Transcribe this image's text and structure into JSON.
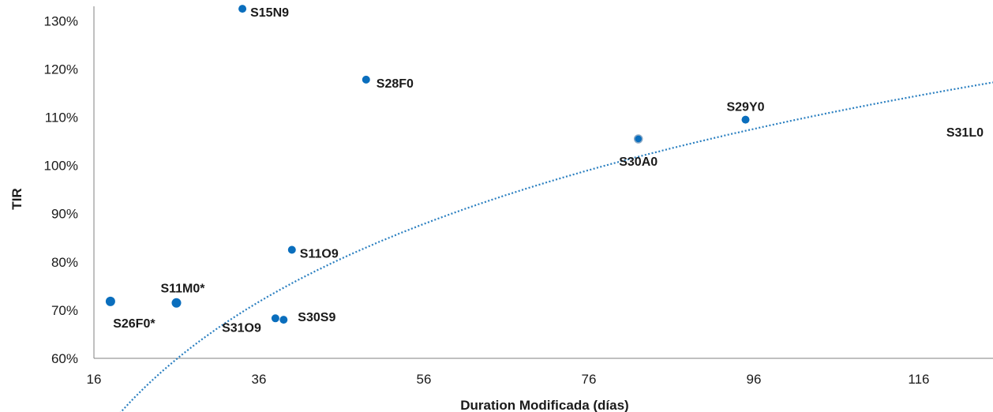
{
  "chart_data": {
    "type": "scatter",
    "title": "",
    "xlabel": "Duration Modificada (días)",
    "ylabel": "TIR",
    "xlim": [
      16,
      125
    ],
    "ylim": [
      60,
      133
    ],
    "x_ticks": [
      16,
      36,
      56,
      76,
      96,
      116
    ],
    "x_tick_labels": [
      "16",
      "36",
      "56",
      "76",
      "96",
      "116"
    ],
    "y_ticks": [
      60,
      70,
      80,
      90,
      100,
      110,
      120,
      130
    ],
    "y_tick_labels": [
      "60%",
      "70%",
      "80%",
      "90%",
      "100%",
      "110%",
      "120%",
      "130%"
    ],
    "grid": false,
    "marker_color": "#0a6ebd",
    "trendline_color": "#2a7fc0",
    "trendline_style": "dotted",
    "trendline_type": "logarithmic",
    "points": [
      {
        "label": "S15N9",
        "x": 34.0,
        "y": 132.5
      },
      {
        "label": "S28F0",
        "x": 49.0,
        "y": 117.8
      },
      {
        "label": "S29Y0",
        "x": 95.0,
        "y": 109.5
      },
      {
        "label": "S30A0",
        "x": 82.0,
        "y": 105.5
      },
      {
        "label": "S11O9",
        "x": 40.0,
        "y": 82.5
      },
      {
        "label": "S11M0*",
        "x": 26.0,
        "y": 71.5
      },
      {
        "label": "S26F0*",
        "x": 18.0,
        "y": 71.8
      },
      {
        "label": "S31O9",
        "x": 38.0,
        "y": 68.3
      },
      {
        "label": "S30S9",
        "x": 39.0,
        "y": 68.0
      },
      {
        "label": "S31L0",
        "x": null,
        "y": null
      }
    ]
  }
}
